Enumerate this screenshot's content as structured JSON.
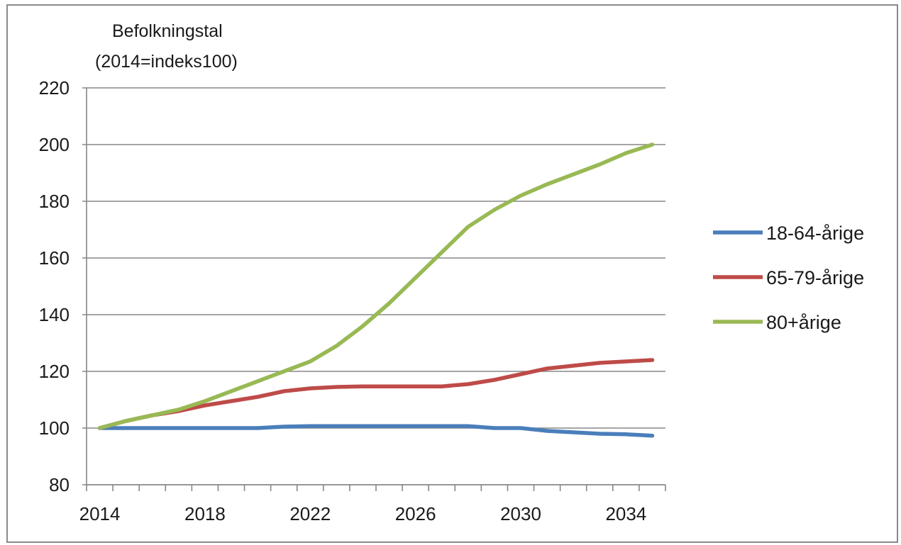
{
  "chart_data": {
    "type": "line",
    "ylabel": [
      "Befolkningstal",
      "(2014=indeks100)"
    ],
    "xlabel": "",
    "ylim": [
      80,
      220
    ],
    "yticks": [
      80,
      100,
      120,
      140,
      160,
      180,
      200,
      220
    ],
    "xlim": [
      2014,
      2035
    ],
    "xticks": [
      2014,
      2018,
      2022,
      2026,
      2030,
      2034
    ],
    "grid": "horizontal",
    "legend_position": "right",
    "x": [
      2014,
      2015,
      2016,
      2017,
      2018,
      2019,
      2020,
      2021,
      2022,
      2023,
      2024,
      2025,
      2026,
      2027,
      2028,
      2029,
      2030,
      2031,
      2032,
      2033,
      2034,
      2035
    ],
    "series": [
      {
        "name": "18-64-årige",
        "color": "#4a7ebb",
        "values": [
          100,
          100,
          100,
          100,
          100,
          100,
          100,
          100.5,
          100.7,
          100.7,
          100.7,
          100.7,
          100.7,
          100.7,
          100.7,
          100,
          100,
          99,
          98.5,
          98,
          97.8,
          97.3
        ]
      },
      {
        "name": "65-79-årige",
        "color": "#be4b48",
        "values": [
          100,
          102.5,
          104.5,
          106,
          108,
          109.5,
          111,
          113,
          114,
          114.5,
          114.7,
          114.7,
          114.7,
          114.7,
          115.5,
          117,
          119,
          121,
          122,
          123,
          123.5,
          124
        ]
      },
      {
        "name": "80+årige",
        "color": "#98b954",
        "values": [
          100,
          102.5,
          104.5,
          106.5,
          109.5,
          113,
          116.5,
          120,
          123.5,
          129,
          136,
          144,
          153,
          162,
          171,
          177,
          182,
          186,
          189.5,
          193,
          197,
          200
        ]
      }
    ]
  }
}
